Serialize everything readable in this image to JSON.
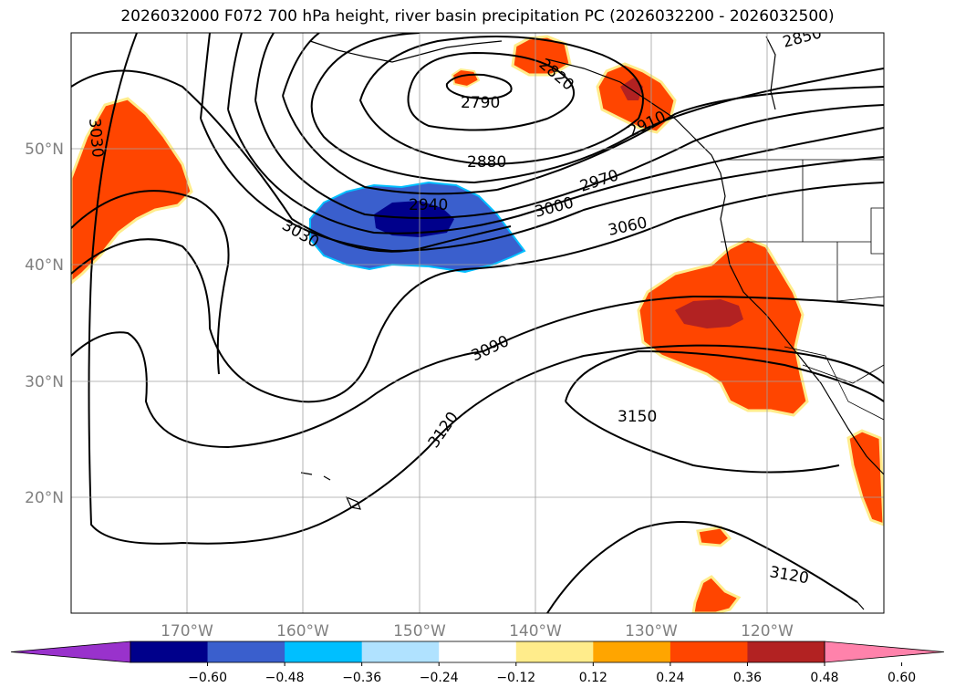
{
  "title": "2026032000 F072 700 hPa height, river basin precipitation PC (2026032200 - 2026032500)",
  "map": {
    "latitude_labels": [
      "50°N",
      "40°N",
      "30°N",
      "20°N"
    ],
    "longitude_labels": [
      "170°W",
      "160°W",
      "150°W",
      "140°W",
      "130°W",
      "120°W"
    ],
    "contour_labels": [
      "2790",
      "2820",
      "2850",
      "2880",
      "2910",
      "2940",
      "2970",
      "3000",
      "3030",
      "3030",
      "3060",
      "3090",
      "3120",
      "3120",
      "3150"
    ]
  },
  "colorbar": {
    "colors": [
      "#9932cc",
      "#00008b",
      "#3a5fcd",
      "#00bfff",
      "#b0e2ff",
      "#ffffff",
      "#ffec8b",
      "#ffa500",
      "#ff4500",
      "#b22222",
      "#ff82ab"
    ],
    "tick_labels": [
      "−0.60",
      "−0.48",
      "−0.36",
      "−0.24",
      "−0.12",
      "0.12",
      "0.24",
      "0.36",
      "0.48",
      "0.60"
    ]
  }
}
